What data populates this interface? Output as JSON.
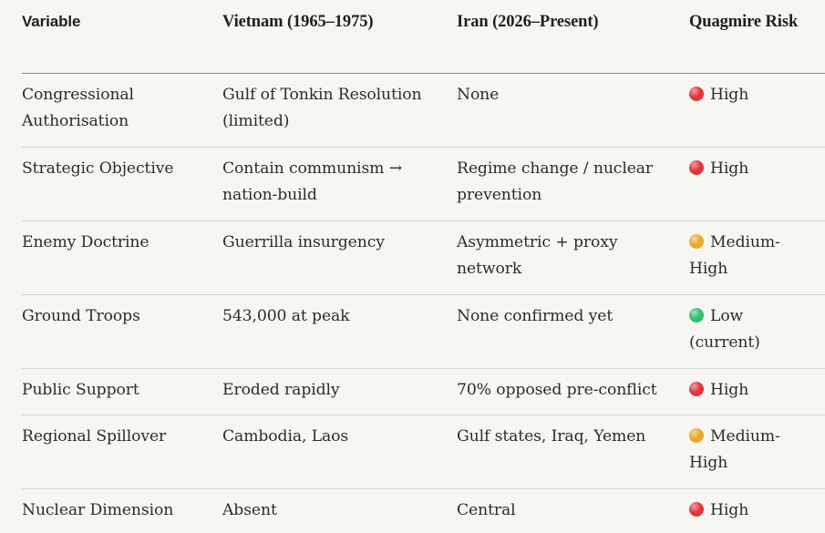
{
  "headers": {
    "variable": "Variable",
    "vietnam": "Vietnam (1965–1975)",
    "iran": "Iran (2026–Present)",
    "risk": "Quagmire Risk"
  },
  "colors": {
    "high": "#e0343f",
    "medium_high": "#e7a92b",
    "low": "#2fbf71"
  },
  "rows": [
    {
      "variable": "Congressional Authorisation",
      "vietnam": "Gulf of Tonkin Resolution (limited)",
      "iran": "None",
      "risk": "High",
      "risk_icon": "red-circle-icon"
    },
    {
      "variable": "Strategic Objective",
      "vietnam": "Contain communism → nation-build",
      "iran": "Regime change / nuclear prevention",
      "risk": "High",
      "risk_icon": "red-circle-icon"
    },
    {
      "variable": "Enemy Doctrine",
      "vietnam": "Guerrilla insurgency",
      "iran": "Asymmetric + proxy network",
      "risk": "Medium-High",
      "risk_icon": "yellow-circle-icon"
    },
    {
      "variable": "Ground Troops",
      "vietnam": "543,000 at peak",
      "iran": "None confirmed yet",
      "risk": "Low (current)",
      "risk_icon": "green-circle-icon"
    },
    {
      "variable": "Public Support",
      "vietnam": "Eroded rapidly",
      "iran": "70% opposed pre-conflict",
      "risk": "High",
      "risk_icon": "red-circle-icon"
    },
    {
      "variable": "Regional Spillover",
      "vietnam": "Cambodia, Laos",
      "iran": "Gulf states, Iraq, Yemen",
      "risk": "Medium-High",
      "risk_icon": "yellow-circle-icon"
    },
    {
      "variable": "Nuclear Dimension",
      "vietnam": "Absent",
      "iran": "Central",
      "risk": "High",
      "risk_icon": "red-circle-icon"
    }
  ]
}
